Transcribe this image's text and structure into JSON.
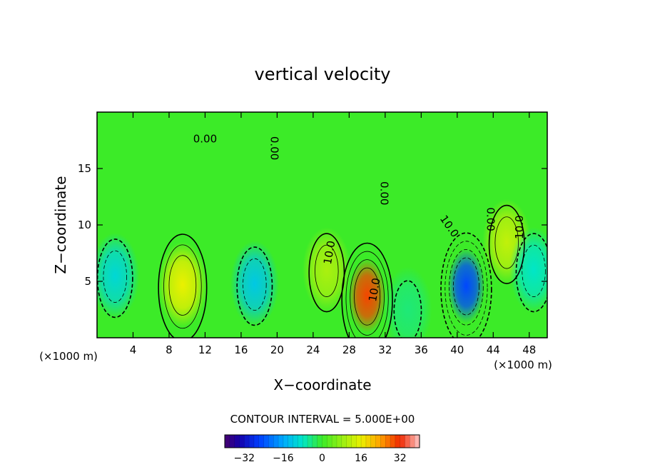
{
  "chart_data": {
    "type": "heatmap",
    "title": "vertical velocity",
    "xlabel": "X−coordinate",
    "ylabel": "Z−coordinate",
    "x_unit": "(×1000 m)",
    "y_unit": "(×1000 m)",
    "xlim": [
      0,
      50
    ],
    "ylim": [
      0,
      20
    ],
    "xticks": [
      "4",
      "8",
      "12",
      "16",
      "20",
      "24",
      "28",
      "32",
      "36",
      "40",
      "44",
      "48"
    ],
    "yticks": [
      "5",
      "10",
      "15"
    ],
    "contour_interval_label": "CONTOUR INTERVAL = 5.000E+00",
    "contour_interval": 5,
    "contour_labels": [
      "0.00",
      "0.00",
      "0.00",
      "0.00",
      "10.0",
      "10.0",
      "10.0",
      "10.0"
    ],
    "colorbar": {
      "range": [
        -40,
        40
      ],
      "ticks": [
        "−32",
        "−16",
        "0",
        "16",
        "32"
      ],
      "tick_values": [
        -32,
        -16,
        0,
        16,
        32
      ]
    },
    "features": [
      {
        "x": 9.5,
        "z": 4.7,
        "value": 16
      },
      {
        "x": 17.5,
        "z": 4.8,
        "value": -12
      },
      {
        "x": 25.5,
        "z": 6.0,
        "value": 10
      },
      {
        "x": 30.0,
        "z": 3.7,
        "value": 30
      },
      {
        "x": 41.0,
        "z": 4.6,
        "value": -25
      },
      {
        "x": 45.5,
        "z": 8.5,
        "value": 12
      },
      {
        "x": 2.0,
        "z": 5.5,
        "value": -10
      },
      {
        "x": 48.5,
        "z": 6.0,
        "value": -8
      },
      {
        "x": 34.5,
        "z": 2.5,
        "value": -4
      }
    ],
    "grid": false,
    "legend": "colorbar-bottom"
  }
}
